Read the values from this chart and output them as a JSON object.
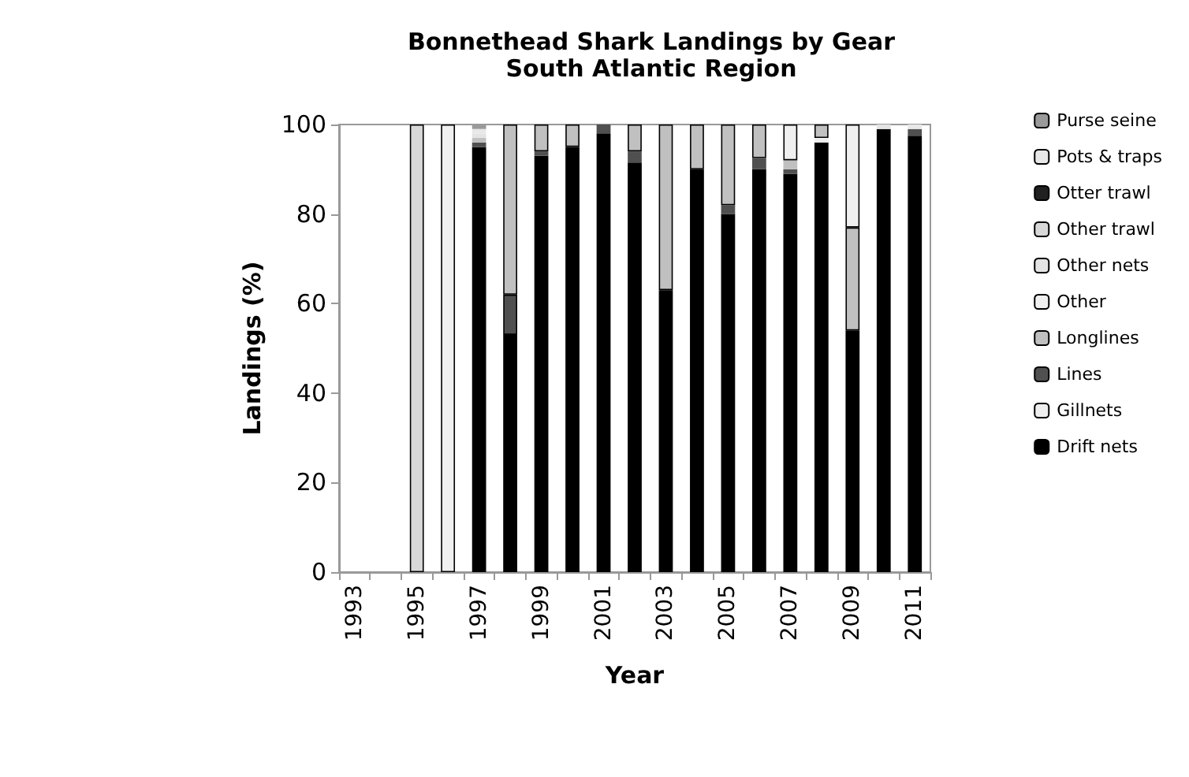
{
  "chart_data": {
    "type": "bar",
    "title": "Bonnethead Shark Landings by Gear",
    "subtitle": "South Atlantic Region",
    "xlabel": "Year",
    "ylabel": "Landings (%)",
    "categories": [
      "1993",
      null,
      "1995",
      null,
      "1997",
      null,
      "1999",
      null,
      "2001",
      null,
      "2003",
      null,
      "2005",
      null,
      "2007",
      null,
      "2009",
      null,
      "2011"
    ],
    "stacked": true,
    "ylim": [
      0,
      100
    ],
    "yticks": [
      0,
      20,
      40,
      60,
      80,
      100
    ],
    "legend": "right",
    "grid": false,
    "series": [
      {
        "name": "Drift nets",
        "color": "#000000",
        "values": [
          null,
          null,
          null,
          null,
          95,
          53,
          93,
          95,
          98,
          91.5,
          63,
          90,
          80,
          90,
          89,
          96,
          54,
          99,
          97.5
        ]
      },
      {
        "name": "Gillnets",
        "color": "#eeeeee",
        "values": [
          null,
          null,
          null,
          null,
          null,
          null,
          null,
          null,
          null,
          null,
          null,
          null,
          null,
          null,
          null,
          1,
          null,
          null,
          null
        ]
      },
      {
        "name": "Lines",
        "color": "#505050",
        "values": [
          null,
          null,
          null,
          null,
          1,
          9,
          1,
          null,
          2,
          2.5,
          null,
          null,
          2,
          2.5,
          1,
          null,
          null,
          null,
          1.5
        ]
      },
      {
        "name": "Longlines",
        "color": "#c0c0c0",
        "values": [
          null,
          null,
          null,
          null,
          1,
          38,
          6,
          5,
          null,
          6,
          37,
          10,
          18,
          7.5,
          2,
          3,
          23,
          null,
          null
        ]
      },
      {
        "name": "Other",
        "color": "#f0f0f0",
        "values": [
          null,
          null,
          null,
          100,
          null,
          null,
          null,
          null,
          null,
          null,
          null,
          null,
          null,
          null,
          8,
          null,
          23,
          null,
          null
        ]
      },
      {
        "name": "Other nets",
        "color": "#e4e4e4",
        "values": [
          null,
          null,
          null,
          null,
          1,
          null,
          null,
          null,
          null,
          null,
          null,
          null,
          null,
          null,
          null,
          null,
          null,
          1,
          null
        ]
      },
      {
        "name": "Other trawl",
        "color": "#d8d8d8",
        "values": [
          null,
          null,
          100,
          null,
          null,
          null,
          null,
          null,
          null,
          null,
          null,
          null,
          null,
          null,
          null,
          null,
          null,
          null,
          null
        ]
      },
      {
        "name": "Otter trawl",
        "color": "#202020",
        "values": [
          null,
          null,
          null,
          null,
          null,
          null,
          null,
          null,
          null,
          null,
          null,
          null,
          null,
          null,
          null,
          null,
          null,
          null,
          null
        ]
      },
      {
        "name": "Pots & traps",
        "color": "#e8e8e8",
        "values": [
          null,
          null,
          null,
          null,
          1,
          null,
          null,
          null,
          null,
          null,
          null,
          null,
          null,
          null,
          null,
          null,
          null,
          null,
          1
        ]
      },
      {
        "name": "Purse seine",
        "color": "#9a9a9a",
        "values": [
          null,
          null,
          null,
          null,
          1,
          null,
          null,
          null,
          null,
          null,
          null,
          null,
          null,
          null,
          null,
          null,
          null,
          null,
          null
        ]
      }
    ]
  }
}
